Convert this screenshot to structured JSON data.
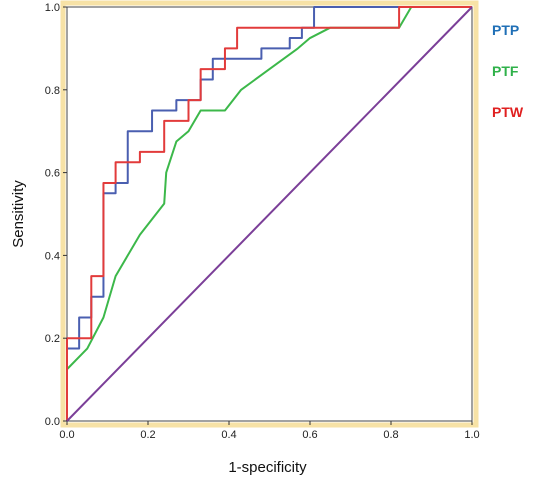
{
  "chart_data": {
    "type": "line",
    "title": "",
    "xlabel": "1-specificity",
    "ylabel": "Sensitivity",
    "xlim": [
      0,
      1
    ],
    "ylim": [
      0,
      1
    ],
    "x_ticks": [
      "0.0",
      "0.2",
      "0.4",
      "0.6",
      "0.8",
      "1.0"
    ],
    "y_ticks": [
      "0.0",
      "0.2",
      "0.4",
      "0.6",
      "0.8",
      "1.0"
    ],
    "grid": false,
    "legend_position": "right",
    "plot_background": "#ffffff",
    "frame_color": "#f7e2a6",
    "series": [
      {
        "name": "PTP",
        "color": "#4a5fb0",
        "label_color": "#1f6fb6",
        "points": [
          [
            0,
            0
          ],
          [
            0,
            0.175
          ],
          [
            0.03,
            0.175
          ],
          [
            0.03,
            0.25
          ],
          [
            0.06,
            0.25
          ],
          [
            0.06,
            0.3
          ],
          [
            0.09,
            0.3
          ],
          [
            0.09,
            0.55
          ],
          [
            0.12,
            0.55
          ],
          [
            0.12,
            0.575
          ],
          [
            0.15,
            0.575
          ],
          [
            0.15,
            0.7
          ],
          [
            0.21,
            0.7
          ],
          [
            0.21,
            0.75
          ],
          [
            0.27,
            0.75
          ],
          [
            0.27,
            0.775
          ],
          [
            0.33,
            0.775
          ],
          [
            0.33,
            0.825
          ],
          [
            0.36,
            0.825
          ],
          [
            0.36,
            0.875
          ],
          [
            0.39,
            0.875
          ],
          [
            0.48,
            0.875
          ],
          [
            0.48,
            0.9
          ],
          [
            0.55,
            0.9
          ],
          [
            0.55,
            0.925
          ],
          [
            0.58,
            0.925
          ],
          [
            0.58,
            0.95
          ],
          [
            0.61,
            0.95
          ],
          [
            0.61,
            1.0
          ],
          [
            1.0,
            1.0
          ]
        ]
      },
      {
        "name": "PTF",
        "color": "#3cb84a",
        "label_color": "#2fb14a",
        "points": [
          [
            0,
            0.125
          ],
          [
            0.05,
            0.175
          ],
          [
            0.09,
            0.25
          ],
          [
            0.12,
            0.35
          ],
          [
            0.18,
            0.45
          ],
          [
            0.24,
            0.525
          ],
          [
            0.245,
            0.6
          ],
          [
            0.27,
            0.675
          ],
          [
            0.3,
            0.7
          ],
          [
            0.33,
            0.75
          ],
          [
            0.39,
            0.75
          ],
          [
            0.43,
            0.8
          ],
          [
            0.5,
            0.85
          ],
          [
            0.57,
            0.9
          ],
          [
            0.6,
            0.925
          ],
          [
            0.65,
            0.95
          ],
          [
            0.82,
            0.95
          ],
          [
            0.85,
            1.0
          ],
          [
            1.0,
            1.0
          ]
        ]
      },
      {
        "name": "PTW",
        "color": "#e23b3b",
        "label_color": "#e02020",
        "points": [
          [
            0,
            0
          ],
          [
            0,
            0.2
          ],
          [
            0.06,
            0.2
          ],
          [
            0.06,
            0.35
          ],
          [
            0.09,
            0.35
          ],
          [
            0.09,
            0.575
          ],
          [
            0.12,
            0.575
          ],
          [
            0.12,
            0.625
          ],
          [
            0.18,
            0.625
          ],
          [
            0.18,
            0.65
          ],
          [
            0.24,
            0.65
          ],
          [
            0.24,
            0.725
          ],
          [
            0.3,
            0.725
          ],
          [
            0.3,
            0.775
          ],
          [
            0.33,
            0.775
          ],
          [
            0.33,
            0.85
          ],
          [
            0.39,
            0.85
          ],
          [
            0.39,
            0.9
          ],
          [
            0.42,
            0.9
          ],
          [
            0.42,
            0.95
          ],
          [
            0.82,
            0.95
          ],
          [
            0.82,
            1.0
          ],
          [
            1.0,
            1.0
          ]
        ]
      },
      {
        "name": "",
        "color": "#7b3f98",
        "points": [
          [
            0,
            0
          ],
          [
            1,
            1
          ]
        ]
      }
    ]
  }
}
